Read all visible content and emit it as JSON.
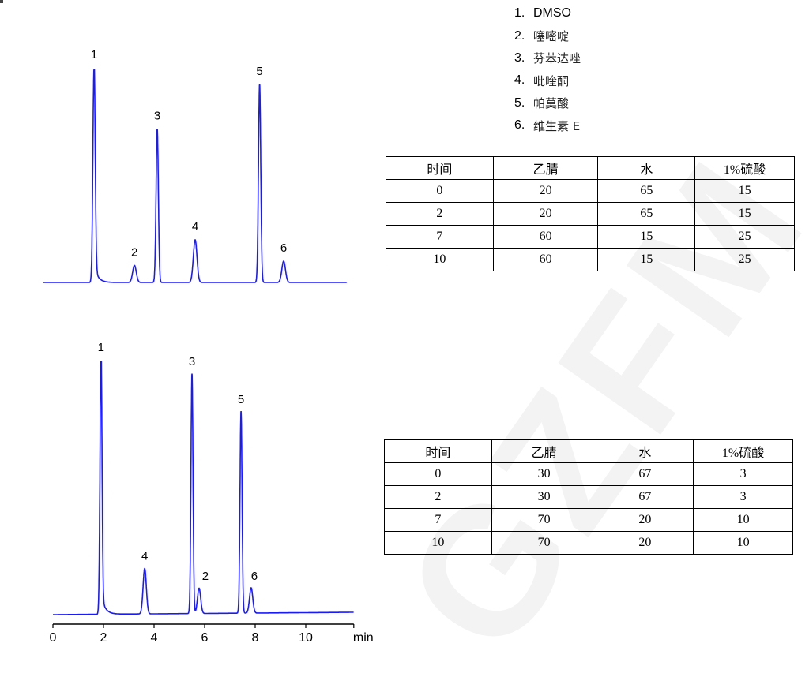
{
  "legend": [
    {
      "num": "1.",
      "name": "DMSO"
    },
    {
      "num": "2.",
      "name": "噻嘧啶"
    },
    {
      "num": "3.",
      "name": "芬苯达唑"
    },
    {
      "num": "4.",
      "name": "吡喹酮"
    },
    {
      "num": "5.",
      "name": "帕莫酸"
    },
    {
      "num": "6.",
      "name": "维生素 E"
    }
  ],
  "watermark": "GZFM",
  "tables": [
    {
      "headers": [
        "时间",
        "乙腈",
        "水",
        "1%硫酸"
      ],
      "rows": [
        [
          "0",
          "20",
          "65",
          "15"
        ],
        [
          "2",
          "20",
          "65",
          "15"
        ],
        [
          "7",
          "60",
          "15",
          "25"
        ],
        [
          "10",
          "60",
          "15",
          "25"
        ]
      ]
    },
    {
      "headers": [
        "时间",
        "乙腈",
        "水",
        "1%硫酸"
      ],
      "rows": [
        [
          "0",
          "30",
          "67",
          "3"
        ],
        [
          "2",
          "30",
          "67",
          "3"
        ],
        [
          "7",
          "70",
          "20",
          "10"
        ],
        [
          "10",
          "70",
          "20",
          "10"
        ]
      ]
    }
  ],
  "chart_data": [
    {
      "type": "line",
      "xlabel": "",
      "line_color": "#1a1aff",
      "xlim": [
        0,
        12
      ],
      "peaks": [
        {
          "label": "1",
          "time": 2.0,
          "rel_height": 1.0
        },
        {
          "label": "2",
          "time": 3.6,
          "rel_height": 0.08
        },
        {
          "label": "3",
          "time": 4.5,
          "rel_height": 0.72
        },
        {
          "label": "4",
          "time": 6.0,
          "rel_height": 0.2
        },
        {
          "label": "5",
          "time": 8.55,
          "rel_height": 0.93
        },
        {
          "label": "6",
          "time": 9.5,
          "rel_height": 0.1
        }
      ]
    },
    {
      "type": "line",
      "xlabel": "min",
      "line_color": "#1a1aff",
      "xlim": [
        0,
        11.9
      ],
      "xticks": [
        "0",
        "2",
        "4",
        "6",
        "8",
        "10"
      ],
      "peaks": [
        {
          "label": "1",
          "time": 1.9,
          "rel_height": 1.0
        },
        {
          "label": "4",
          "time": 3.63,
          "rel_height": 0.18
        },
        {
          "label": "3",
          "time": 5.5,
          "rel_height": 0.95
        },
        {
          "label": "2",
          "time": 5.78,
          "rel_height": 0.1
        },
        {
          "label": "5",
          "time": 7.44,
          "rel_height": 0.8
        },
        {
          "label": "6",
          "time": 7.84,
          "rel_height": 0.1
        }
      ]
    }
  ]
}
